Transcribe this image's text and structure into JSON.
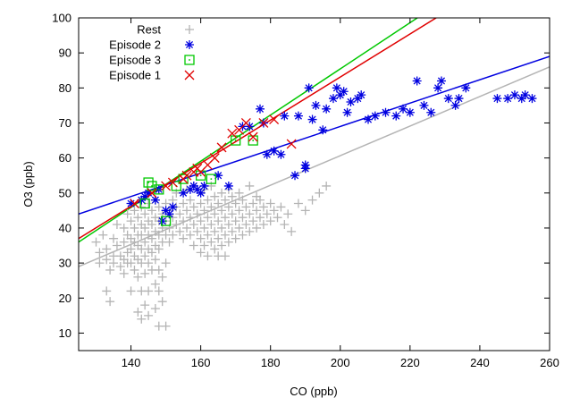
{
  "chart_data": {
    "type": "scatter",
    "title": "",
    "xlabel": "CO (ppb)",
    "ylabel": "O3 (ppb)",
    "xlim": [
      125,
      260
    ],
    "ylim": [
      5,
      100
    ],
    "xticks": [
      140,
      160,
      180,
      200,
      220,
      240,
      260
    ],
    "yticks": [
      10,
      20,
      30,
      40,
      50,
      60,
      70,
      80,
      90,
      100
    ],
    "grid": false,
    "legend_position": "top-left",
    "series": [
      {
        "name": "Rest",
        "marker": "plus",
        "color": "#b4b4b4",
        "points": [
          [
            130,
            36
          ],
          [
            131,
            33
          ],
          [
            131,
            30
          ],
          [
            132,
            38
          ],
          [
            133,
            34
          ],
          [
            133,
            31
          ],
          [
            133,
            22
          ],
          [
            134,
            28
          ],
          [
            134,
            19
          ],
          [
            135,
            37
          ],
          [
            135,
            32
          ],
          [
            135,
            30
          ],
          [
            136,
            41
          ],
          [
            136,
            35
          ],
          [
            137,
            32
          ],
          [
            137,
            29
          ],
          [
            138,
            40
          ],
          [
            138,
            36
          ],
          [
            138,
            31
          ],
          [
            138,
            27
          ],
          [
            139,
            44
          ],
          [
            139,
            38
          ],
          [
            139,
            33
          ],
          [
            139,
            30
          ],
          [
            140,
            42
          ],
          [
            140,
            37
          ],
          [
            140,
            34
          ],
          [
            140,
            30
          ],
          [
            140,
            22
          ],
          [
            141,
            45
          ],
          [
            141,
            40
          ],
          [
            141,
            36
          ],
          [
            141,
            32
          ],
          [
            141,
            28
          ],
          [
            142,
            43
          ],
          [
            142,
            38
          ],
          [
            142,
            35
          ],
          [
            142,
            31
          ],
          [
            142,
            26
          ],
          [
            142,
            16
          ],
          [
            143,
            46
          ],
          [
            143,
            41
          ],
          [
            143,
            38
          ],
          [
            143,
            34
          ],
          [
            143,
            30
          ],
          [
            143,
            22
          ],
          [
            143,
            14
          ],
          [
            144,
            44
          ],
          [
            144,
            40
          ],
          [
            144,
            36
          ],
          [
            144,
            32
          ],
          [
            144,
            27
          ],
          [
            144,
            18
          ],
          [
            145,
            47
          ],
          [
            145,
            42
          ],
          [
            145,
            38
          ],
          [
            145,
            34
          ],
          [
            145,
            30
          ],
          [
            145,
            22
          ],
          [
            145,
            15
          ],
          [
            146,
            45
          ],
          [
            146,
            41
          ],
          [
            146,
            37
          ],
          [
            146,
            33
          ],
          [
            146,
            28
          ],
          [
            147,
            48
          ],
          [
            147,
            43
          ],
          [
            147,
            39
          ],
          [
            147,
            35
          ],
          [
            147,
            31
          ],
          [
            147,
            24
          ],
          [
            147,
            17
          ],
          [
            148,
            46
          ],
          [
            148,
            42
          ],
          [
            148,
            38
          ],
          [
            148,
            34
          ],
          [
            148,
            28
          ],
          [
            148,
            22
          ],
          [
            148,
            12
          ],
          [
            149,
            44
          ],
          [
            149,
            40
          ],
          [
            149,
            36
          ],
          [
            149,
            26
          ],
          [
            149,
            19
          ],
          [
            150,
            47
          ],
          [
            150,
            42
          ],
          [
            150,
            38
          ],
          [
            150,
            30
          ],
          [
            150,
            12
          ],
          [
            151,
            45
          ],
          [
            151,
            40
          ],
          [
            151,
            36
          ],
          [
            152,
            48
          ],
          [
            152,
            43
          ],
          [
            152,
            38
          ],
          [
            153,
            46
          ],
          [
            153,
            41
          ],
          [
            154,
            44
          ],
          [
            154,
            39
          ],
          [
            155,
            47
          ],
          [
            155,
            42
          ],
          [
            155,
            37
          ],
          [
            156,
            45
          ],
          [
            156,
            40
          ],
          [
            157,
            48
          ],
          [
            157,
            43
          ],
          [
            157,
            38
          ],
          [
            158,
            46
          ],
          [
            158,
            41
          ],
          [
            158,
            35
          ],
          [
            159,
            44
          ],
          [
            159,
            39
          ],
          [
            160,
            47
          ],
          [
            160,
            42
          ],
          [
            160,
            37
          ],
          [
            160,
            33
          ],
          [
            161,
            45
          ],
          [
            161,
            40
          ],
          [
            161,
            35
          ],
          [
            162,
            48
          ],
          [
            162,
            43
          ],
          [
            162,
            38
          ],
          [
            162,
            32
          ],
          [
            163,
            46
          ],
          [
            163,
            41
          ],
          [
            163,
            36
          ],
          [
            164,
            49
          ],
          [
            164,
            44
          ],
          [
            164,
            39
          ],
          [
            164,
            34
          ],
          [
            165,
            47
          ],
          [
            165,
            42
          ],
          [
            165,
            37
          ],
          [
            165,
            32
          ],
          [
            166,
            45
          ],
          [
            166,
            40
          ],
          [
            166,
            35
          ],
          [
            167,
            48
          ],
          [
            167,
            43
          ],
          [
            167,
            38
          ],
          [
            167,
            32
          ],
          [
            168,
            46
          ],
          [
            168,
            41
          ],
          [
            168,
            36
          ],
          [
            169,
            49
          ],
          [
            169,
            44
          ],
          [
            169,
            39
          ],
          [
            170,
            47
          ],
          [
            170,
            42
          ],
          [
            170,
            37
          ],
          [
            171,
            45
          ],
          [
            171,
            40
          ],
          [
            172,
            48
          ],
          [
            172,
            43
          ],
          [
            172,
            38
          ],
          [
            173,
            46
          ],
          [
            173,
            41
          ],
          [
            174,
            44
          ],
          [
            174,
            39
          ],
          [
            175,
            47
          ],
          [
            175,
            42
          ],
          [
            176,
            45
          ],
          [
            176,
            40
          ],
          [
            177,
            48
          ],
          [
            177,
            43
          ],
          [
            178,
            46
          ],
          [
            178,
            41
          ],
          [
            179,
            44
          ],
          [
            180,
            47
          ],
          [
            180,
            42
          ],
          [
            181,
            45
          ],
          [
            182,
            43
          ],
          [
            183,
            46
          ],
          [
            184,
            41
          ],
          [
            185,
            44
          ],
          [
            186,
            39
          ],
          [
            188,
            47
          ],
          [
            190,
            45
          ],
          [
            192,
            48
          ],
          [
            194,
            50
          ],
          [
            196,
            52
          ],
          [
            153,
            50
          ],
          [
            156,
            51
          ],
          [
            158,
            52
          ],
          [
            161,
            51
          ],
          [
            163,
            52
          ],
          [
            166,
            50
          ],
          [
            168,
            51
          ],
          [
            171,
            50
          ],
          [
            174,
            52
          ],
          [
            176,
            49
          ]
        ]
      },
      {
        "name": "Episode 2",
        "marker": "star",
        "color": "#0000e0",
        "points": [
          [
            140,
            47
          ],
          [
            143,
            48
          ],
          [
            144,
            49
          ],
          [
            145,
            50
          ],
          [
            147,
            48
          ],
          [
            148,
            51
          ],
          [
            149,
            42
          ],
          [
            150,
            45
          ],
          [
            151,
            44
          ],
          [
            152,
            46
          ],
          [
            155,
            50
          ],
          [
            157,
            51
          ],
          [
            158,
            52
          ],
          [
            159,
            51
          ],
          [
            160,
            50
          ],
          [
            161,
            52
          ],
          [
            165,
            55
          ],
          [
            168,
            52
          ],
          [
            172,
            69
          ],
          [
            174,
            69
          ],
          [
            177,
            74
          ],
          [
            178,
            70
          ],
          [
            179,
            61
          ],
          [
            181,
            62
          ],
          [
            183,
            61
          ],
          [
            184,
            72
          ],
          [
            187,
            55
          ],
          [
            188,
            72
          ],
          [
            190,
            57
          ],
          [
            190,
            58
          ],
          [
            191,
            80
          ],
          [
            192,
            71
          ],
          [
            193,
            75
          ],
          [
            195,
            68
          ],
          [
            196,
            74
          ],
          [
            198,
            77
          ],
          [
            199,
            80
          ],
          [
            200,
            78
          ],
          [
            201,
            79
          ],
          [
            202,
            73
          ],
          [
            203,
            76
          ],
          [
            205,
            77
          ],
          [
            206,
            78
          ],
          [
            208,
            71
          ],
          [
            210,
            72
          ],
          [
            213,
            73
          ],
          [
            216,
            72
          ],
          [
            218,
            74
          ],
          [
            220,
            73
          ],
          [
            222,
            82
          ],
          [
            224,
            75
          ],
          [
            226,
            73
          ],
          [
            228,
            80
          ],
          [
            229,
            82
          ],
          [
            231,
            77
          ],
          [
            233,
            75
          ],
          [
            234,
            77
          ],
          [
            236,
            80
          ],
          [
            245,
            77
          ],
          [
            248,
            77
          ],
          [
            250,
            78
          ],
          [
            252,
            77
          ],
          [
            253,
            78
          ],
          [
            255,
            77
          ]
        ]
      },
      {
        "name": "Episode 3",
        "marker": "square",
        "color": "#00c800",
        "points": [
          [
            144,
            47
          ],
          [
            145,
            53
          ],
          [
            146,
            52
          ],
          [
            148,
            51
          ],
          [
            150,
            42
          ],
          [
            153,
            52
          ],
          [
            155,
            54
          ],
          [
            160,
            55
          ],
          [
            163,
            54
          ],
          [
            170,
            65
          ],
          [
            175,
            65
          ]
        ]
      },
      {
        "name": "Episode 1",
        "marker": "x",
        "color": "#e00000",
        "points": [
          [
            141,
            47
          ],
          [
            146,
            50
          ],
          [
            150,
            52
          ],
          [
            152,
            53
          ],
          [
            155,
            54
          ],
          [
            156,
            55
          ],
          [
            158,
            56
          ],
          [
            159,
            57
          ],
          [
            160,
            56
          ],
          [
            162,
            58
          ],
          [
            164,
            60
          ],
          [
            166,
            63
          ],
          [
            169,
            67
          ],
          [
            171,
            68
          ],
          [
            173,
            70
          ],
          [
            175,
            66
          ],
          [
            178,
            70
          ],
          [
            181,
            71
          ],
          [
            186,
            64
          ]
        ]
      }
    ],
    "fit_lines": [
      {
        "series": "Rest",
        "color": "#b4b4b4",
        "x": [
          125,
          260
        ],
        "y": [
          29,
          86
        ]
      },
      {
        "series": "Episode 2",
        "color": "#0000e0",
        "x": [
          125,
          260
        ],
        "y": [
          44,
          89
        ]
      },
      {
        "series": "Episode 3",
        "color": "#00c800",
        "x": [
          125,
          260
        ],
        "y": [
          36,
          125
        ]
      },
      {
        "series": "Episode 1",
        "color": "#e00000",
        "x": [
          125,
          260
        ],
        "y": [
          37,
          120
        ]
      }
    ]
  }
}
